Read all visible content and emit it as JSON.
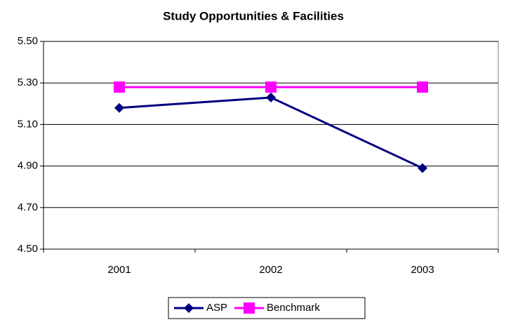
{
  "chart_data": {
    "type": "line",
    "title": "Study Opportunities & Facilities",
    "categories": [
      "2001",
      "2002",
      "2003"
    ],
    "series": [
      {
        "name": "ASP",
        "color": "#000080",
        "marker": "diamond",
        "values": [
          5.18,
          5.23,
          4.89
        ]
      },
      {
        "name": "Benchmark",
        "color": "#ff00ff",
        "marker": "square",
        "values": [
          5.28,
          5.28,
          5.28
        ]
      }
    ],
    "ylim": [
      4.5,
      5.5
    ],
    "yticks": [
      {
        "value": 4.5,
        "label": "4.50"
      },
      {
        "value": 4.7,
        "label": "4.70"
      },
      {
        "value": 4.9,
        "label": "4.90"
      },
      {
        "value": 5.1,
        "label": "5.10"
      },
      {
        "value": 5.3,
        "label": "5.30"
      },
      {
        "value": 5.5,
        "label": "5.50"
      }
    ],
    "grid": true,
    "legend": "bottom"
  }
}
